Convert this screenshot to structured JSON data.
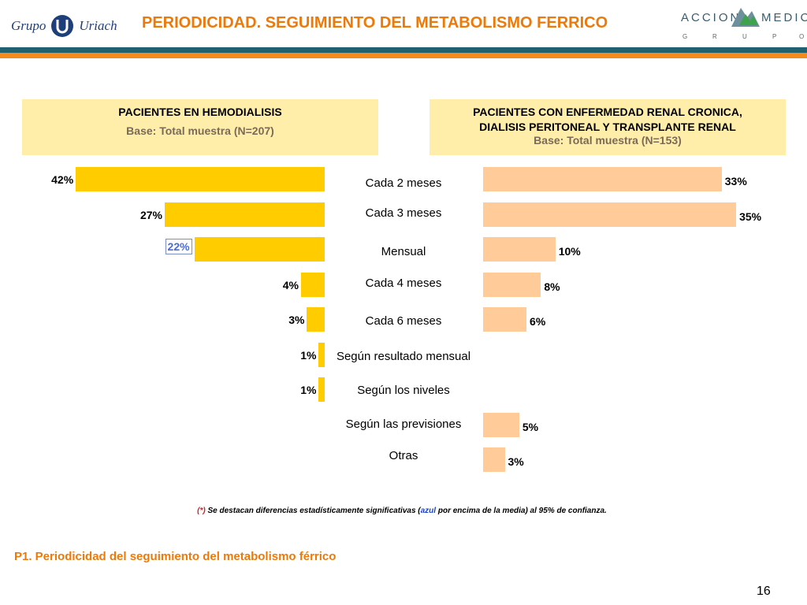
{
  "header": {
    "logo_left_word1": "Grupo",
    "logo_left_word2": "Uriach",
    "title": "PERIODICIDAD. SEGUIMIENTO DEL METABOLISMO FERRICO",
    "logo_right_word1": "ACCION",
    "logo_right_word2": "MEDICA",
    "logo_right_sub": [
      "G",
      "R",
      "U",
      "P",
      "O"
    ]
  },
  "colors": {
    "left_bar": "#ffcc00",
    "right_bar": "#ffcc99",
    "panel": "#ffeeaa",
    "accent": "#ec7a0b",
    "teal": "#21606f"
  },
  "panels": {
    "left": {
      "title": "PACIENTES EN HEMODIALISIS",
      "base": "Base: Total muestra (N=207)"
    },
    "right": {
      "title_line1": "PACIENTES CON ENFERMEDAD RENAL CRONICA,",
      "title_line2": "DIALISIS PERITONEAL Y TRANSPLANTE RENAL",
      "base": "Base: Total muestra (N=153)"
    }
  },
  "chart_data": {
    "type": "bar",
    "orientation": "horizontal",
    "categories": [
      "Cada 2 meses",
      "Cada 3 meses",
      "Mensual",
      "Cada 4 meses",
      "Cada 6 meses",
      "Según resultado mensual",
      "Según los niveles",
      "Según las previsiones",
      "Otras"
    ],
    "series": [
      {
        "name": "PACIENTES EN HEMODIALISIS",
        "values": [
          42,
          27,
          22,
          4,
          3,
          1,
          1,
          null,
          null
        ],
        "labels": [
          "42%",
          "27%",
          "22%",
          "4%",
          "3%",
          "1%",
          "1%",
          "",
          ""
        ],
        "highlighted_index": 2
      },
      {
        "name": "PACIENTES CON ENFERMEDAD RENAL CRONICA, DIALISIS PERITONEAL Y TRANSPLANTE RENAL",
        "values": [
          33,
          35,
          10,
          8,
          6,
          null,
          null,
          5,
          3
        ],
        "labels": [
          "33%",
          "35%",
          "10%",
          "8%",
          "6%",
          "",
          "",
          "5%",
          "3%"
        ]
      }
    ],
    "unit": "%"
  },
  "note": {
    "asterisk": "(*)",
    "part1": " Se destacan diferencias estadísticamente significativas (",
    "blue": "azul",
    "part2": " por encima de la media) al 95% de confianza."
  },
  "footer": {
    "question": "P1. Periodicidad del seguimiento del metabolismo férrico",
    "page": "16"
  }
}
